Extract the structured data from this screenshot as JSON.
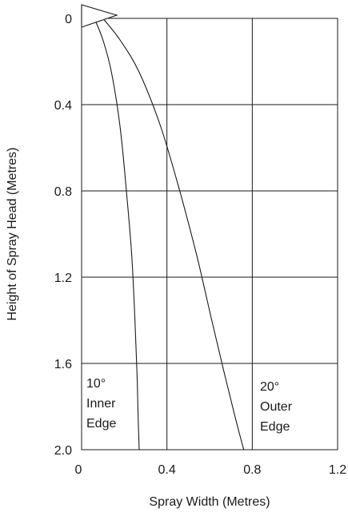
{
  "chart_data": {
    "type": "line",
    "title": "",
    "xlabel": "Spray Width (Metres)",
    "ylabel": "Height of Spray Head (Metres)",
    "xlim": [
      0,
      1.2
    ],
    "ylim": [
      0,
      2.0
    ],
    "y_axis_inverted": true,
    "grid": true,
    "x_ticks": [
      "0",
      "0.4",
      "0.8",
      "1.2"
    ],
    "y_ticks": [
      "0",
      "0.4",
      "0.8",
      "1.2",
      "1.6",
      "2.0"
    ],
    "series": [
      {
        "x": [
          0.06,
          0.1,
          0.14,
          0.18,
          0.21,
          0.235,
          0.25,
          0.26,
          0.265,
          0.27
        ],
        "y": [
          0.0,
          0.1,
          0.25,
          0.5,
          0.8,
          1.1,
          1.4,
          1.65,
          1.85,
          2.0
        ]
      },
      {
        "x": [
          0.1,
          0.18,
          0.27,
          0.37,
          0.46,
          0.54,
          0.61,
          0.67,
          0.72,
          0.76
        ],
        "y": [
          0.0,
          0.1,
          0.25,
          0.5,
          0.8,
          1.1,
          1.4,
          1.65,
          1.85,
          2.0
        ]
      }
    ],
    "annotations": [
      {
        "lines": [
          "10°",
          "Inner",
          "Edge"
        ]
      },
      {
        "lines": [
          "20°",
          "Outer",
          "Edge"
        ]
      }
    ],
    "marker": "spray-head"
  }
}
